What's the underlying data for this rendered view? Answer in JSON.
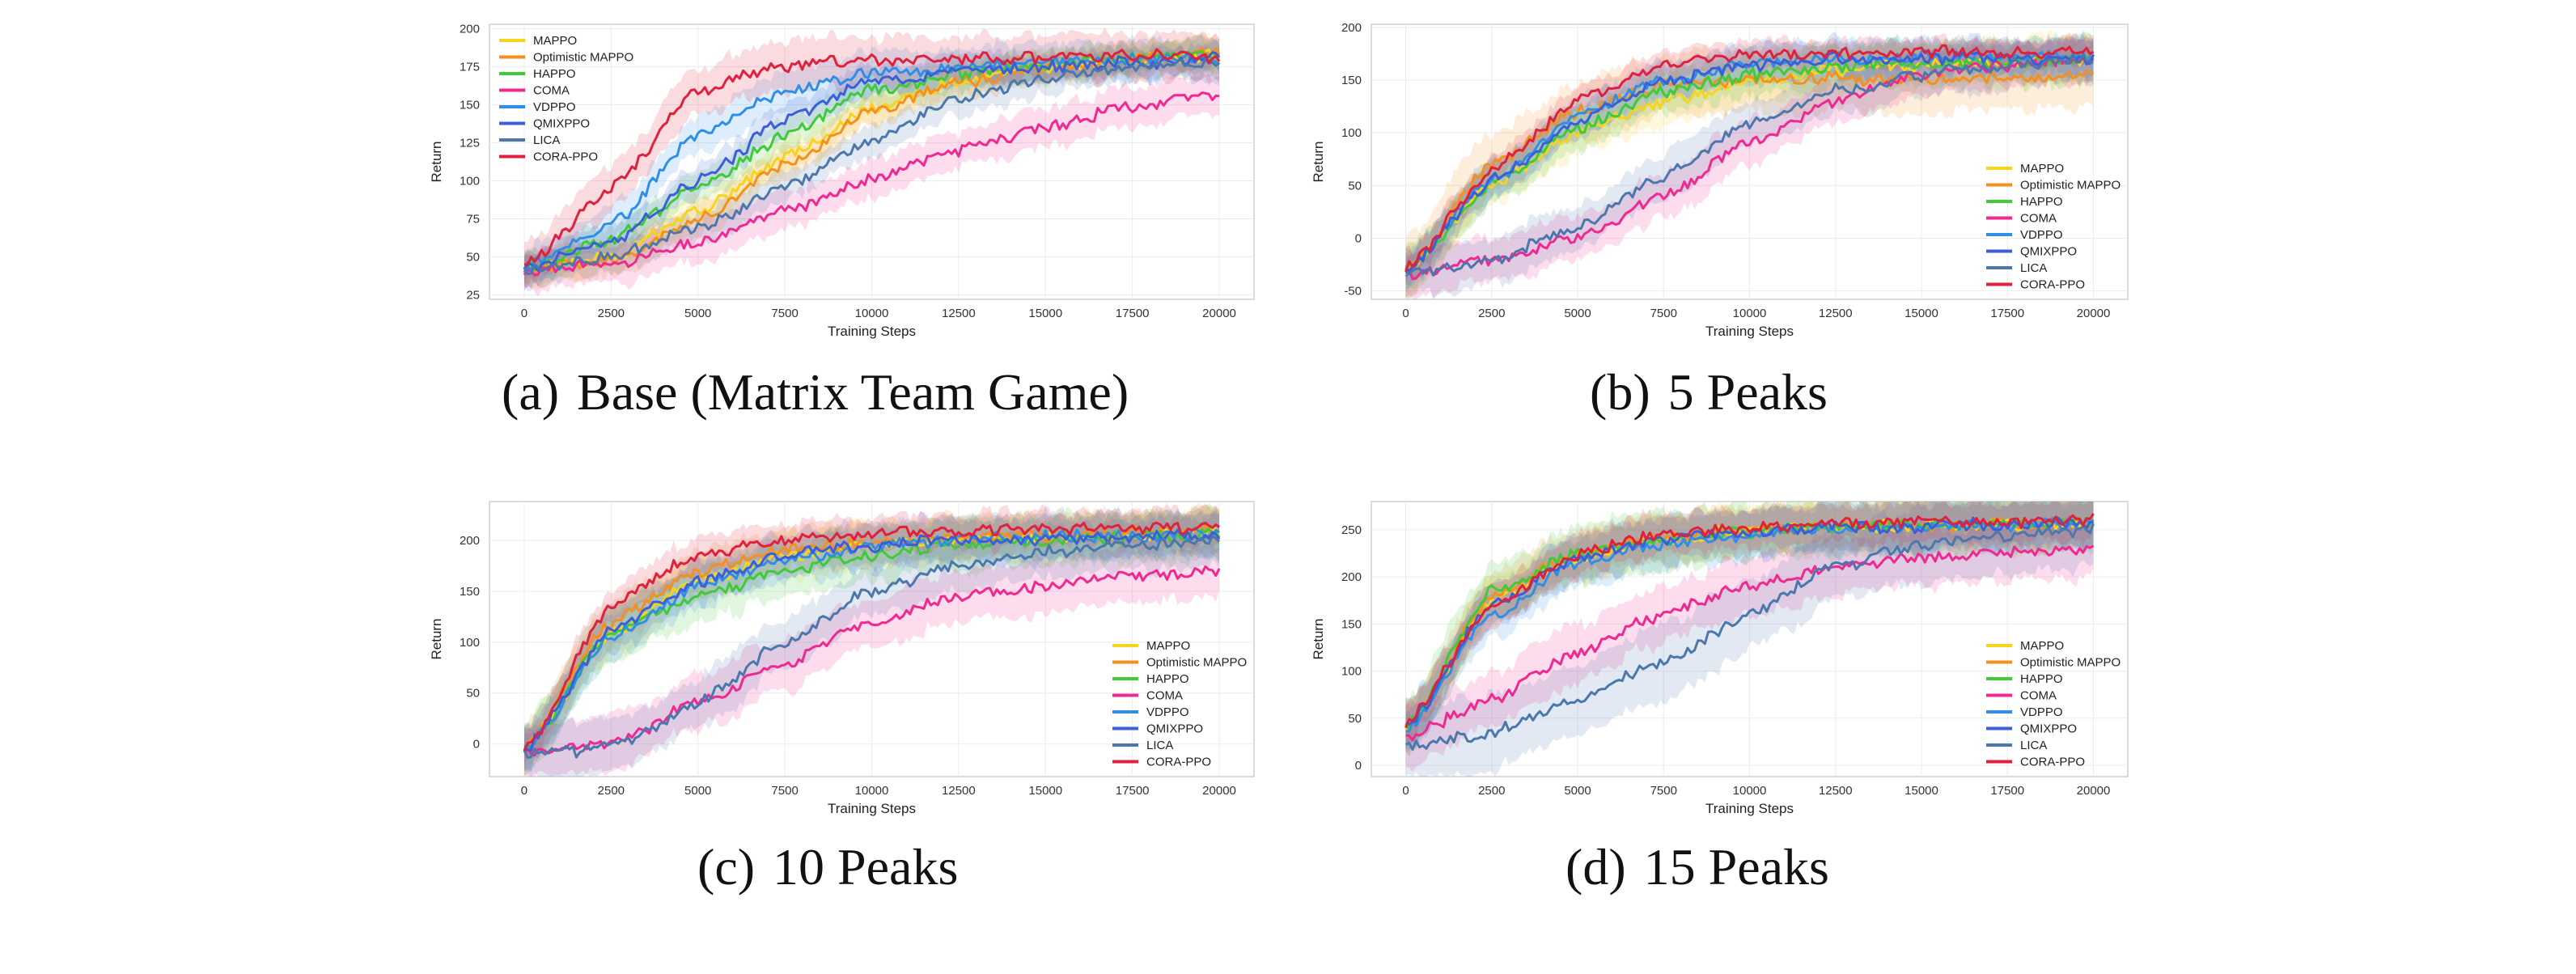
{
  "figure": {
    "captions": [
      {
        "tag": "(a)",
        "text": "Base (Matrix Team Game)"
      },
      {
        "tag": "(b)",
        "text": "5 Peaks"
      },
      {
        "tag": "(c)",
        "text": "10 Peaks"
      },
      {
        "tag": "(d)",
        "text": "15 Peaks"
      }
    ]
  },
  "series_colors": {
    "MAPPO": "#f5d41e",
    "Optimistic MAPPO": "#f5901e",
    "HAPPO": "#3fca37",
    "COMA": "#f0288f",
    "VDPPO": "#2f8ee8",
    "QMIXPPO": "#3a5fd8",
    "LICA": "#4a78ad",
    "CORA-PPO": "#e0203c"
  },
  "chart_data": [
    {
      "type": "line",
      "xlabel": "Training Steps",
      "ylabel": "Return",
      "xlim": [
        -1000,
        21000
      ],
      "ylim": [
        22,
        203
      ],
      "xticks": [
        0,
        2500,
        5000,
        7500,
        10000,
        12500,
        15000,
        17500,
        20000
      ],
      "yticks": [
        25,
        50,
        75,
        100,
        125,
        150,
        175,
        200
      ],
      "grid": true,
      "legend_position": "top-left",
      "x": [
        0,
        2500,
        5000,
        7500,
        10000,
        12500,
        15000,
        17500,
        20000
      ],
      "series": [
        {
          "name": "MAPPO",
          "values": [
            42,
            50,
            80,
            115,
            148,
            165,
            175,
            180,
            182
          ],
          "band": 12
        },
        {
          "name": "Optimistic MAPPO",
          "values": [
            42,
            48,
            75,
            110,
            145,
            165,
            175,
            180,
            184
          ],
          "band": 12
        },
        {
          "name": "HAPPO",
          "values": [
            42,
            62,
            95,
            130,
            160,
            170,
            177,
            181,
            182
          ],
          "band": 12
        },
        {
          "name": "COMA",
          "values": [
            40,
            45,
            60,
            80,
            100,
            120,
            135,
            148,
            158
          ],
          "band": 15
        },
        {
          "name": "VDPPO",
          "values": [
            43,
            70,
            130,
            160,
            170,
            175,
            178,
            180,
            181
          ],
          "band": 15
        },
        {
          "name": "QMIXPPO",
          "values": [
            42,
            60,
            100,
            140,
            165,
            172,
            175,
            178,
            180
          ],
          "band": 12
        },
        {
          "name": "LICA",
          "values": [
            41,
            50,
            70,
            95,
            125,
            155,
            168,
            175,
            178
          ],
          "band": 12
        },
        {
          "name": "CORA-PPO",
          "values": [
            44,
            95,
            160,
            176,
            179,
            180,
            181,
            182,
            182
          ],
          "band": 18
        }
      ]
    },
    {
      "type": "line",
      "xlabel": "Training Steps",
      "ylabel": "Return",
      "xlim": [
        -1000,
        21000
      ],
      "ylim": [
        -58,
        203
      ],
      "xticks": [
        0,
        2500,
        5000,
        7500,
        10000,
        12500,
        15000,
        17500,
        20000
      ],
      "yticks": [
        -50,
        0,
        50,
        100,
        150,
        200
      ],
      "grid": true,
      "legend_position": "bottom-right",
      "x": [
        0,
        2500,
        5000,
        7500,
        10000,
        12500,
        15000,
        17500,
        20000
      ],
      "series": [
        {
          "name": "MAPPO",
          "values": [
            -30,
            50,
            100,
            130,
            148,
            160,
            165,
            168,
            170
          ],
          "band": 25
        },
        {
          "name": "Optimistic MAPPO",
          "values": [
            -30,
            70,
            120,
            145,
            150,
            152,
            150,
            152,
            155
          ],
          "band": 35
        },
        {
          "name": "HAPPO",
          "values": [
            -30,
            50,
            105,
            140,
            155,
            162,
            165,
            168,
            170
          ],
          "band": 25
        },
        {
          "name": "COMA",
          "values": [
            -35,
            -20,
            0,
            40,
            90,
            130,
            155,
            165,
            168
          ],
          "band": 25
        },
        {
          "name": "VDPPO",
          "values": [
            -30,
            55,
            115,
            150,
            165,
            170,
            172,
            172,
            173
          ],
          "band": 20
        },
        {
          "name": "QMIXPPO",
          "values": [
            -30,
            55,
            110,
            150,
            165,
            170,
            170,
            170,
            170
          ],
          "band": 20
        },
        {
          "name": "LICA",
          "values": [
            -35,
            -20,
            10,
            60,
            110,
            140,
            155,
            165,
            170
          ],
          "band": 25
        },
        {
          "name": "CORA-PPO",
          "values": [
            -30,
            65,
            130,
            165,
            175,
            176,
            177,
            177,
            178
          ],
          "band": 15
        }
      ]
    },
    {
      "type": "line",
      "xlabel": "Training Steps",
      "ylabel": "Return",
      "xlim": [
        -1000,
        21000
      ],
      "ylim": [
        -32,
        238
      ],
      "xticks": [
        0,
        2500,
        5000,
        7500,
        10000,
        12500,
        15000,
        17500,
        20000
      ],
      "yticks": [
        0,
        50,
        100,
        150,
        200
      ],
      "grid": true,
      "legend_position": "bottom-right",
      "x": [
        0,
        2500,
        5000,
        7500,
        10000,
        12500,
        15000,
        17500,
        20000
      ],
      "series": [
        {
          "name": "MAPPO",
          "values": [
            -5,
            110,
            160,
            185,
            195,
            200,
            203,
            205,
            207
          ],
          "band": 25
        },
        {
          "name": "Optimistic MAPPO",
          "values": [
            -5,
            120,
            170,
            190,
            198,
            202,
            205,
            207,
            208
          ],
          "band": 25
        },
        {
          "name": "HAPPO",
          "values": [
            -5,
            110,
            145,
            170,
            185,
            195,
            200,
            203,
            205
          ],
          "band": 30
        },
        {
          "name": "COMA",
          "values": [
            -10,
            0,
            40,
            80,
            120,
            145,
            155,
            165,
            170
          ],
          "band": 30
        },
        {
          "name": "VDPPO",
          "values": [
            -5,
            105,
            155,
            180,
            195,
            200,
            203,
            205,
            207
          ],
          "band": 25
        },
        {
          "name": "QMIXPPO",
          "values": [
            -5,
            110,
            160,
            185,
            195,
            200,
            202,
            204,
            205
          ],
          "band": 25
        },
        {
          "name": "LICA",
          "values": [
            -10,
            -5,
            40,
            100,
            150,
            175,
            188,
            195,
            200
          ],
          "band": 30
        },
        {
          "name": "CORA-PPO",
          "values": [
            -5,
            135,
            185,
            202,
            207,
            210,
            211,
            212,
            213
          ],
          "band": 20
        }
      ]
    },
    {
      "type": "line",
      "xlabel": "Training Steps",
      "ylabel": "Return",
      "xlim": [
        -1000,
        21000
      ],
      "ylim": [
        -12,
        280
      ],
      "xticks": [
        0,
        2500,
        5000,
        7500,
        10000,
        12500,
        15000,
        17500,
        20000
      ],
      "yticks": [
        0,
        50,
        100,
        150,
        200,
        250
      ],
      "grid": true,
      "legend_position": "bottom-right",
      "x": [
        0,
        2500,
        5000,
        7500,
        10000,
        12500,
        15000,
        17500,
        20000
      ],
      "series": [
        {
          "name": "MAPPO",
          "values": [
            40,
            175,
            220,
            240,
            250,
            253,
            255,
            256,
            257
          ],
          "band": 30
        },
        {
          "name": "Optimistic MAPPO",
          "values": [
            40,
            180,
            225,
            243,
            250,
            253,
            255,
            257,
            258
          ],
          "band": 30
        },
        {
          "name": "HAPPO",
          "values": [
            40,
            185,
            225,
            240,
            248,
            252,
            254,
            256,
            257
          ],
          "band": 35
        },
        {
          "name": "COMA",
          "values": [
            30,
            70,
            120,
            160,
            190,
            210,
            220,
            225,
            230
          ],
          "band": 35
        },
        {
          "name": "VDPPO",
          "values": [
            40,
            160,
            215,
            235,
            245,
            250,
            253,
            255,
            256
          ],
          "band": 30
        },
        {
          "name": "QMIXPPO",
          "values": [
            40,
            170,
            220,
            240,
            248,
            252,
            254,
            256,
            257
          ],
          "band": 30
        },
        {
          "name": "LICA",
          "values": [
            20,
            35,
            70,
            110,
            160,
            210,
            235,
            245,
            250
          ],
          "band": 45
        },
        {
          "name": "CORA-PPO",
          "values": [
            45,
            170,
            225,
            245,
            252,
            256,
            258,
            259,
            260
          ],
          "band": 25
        }
      ]
    }
  ]
}
